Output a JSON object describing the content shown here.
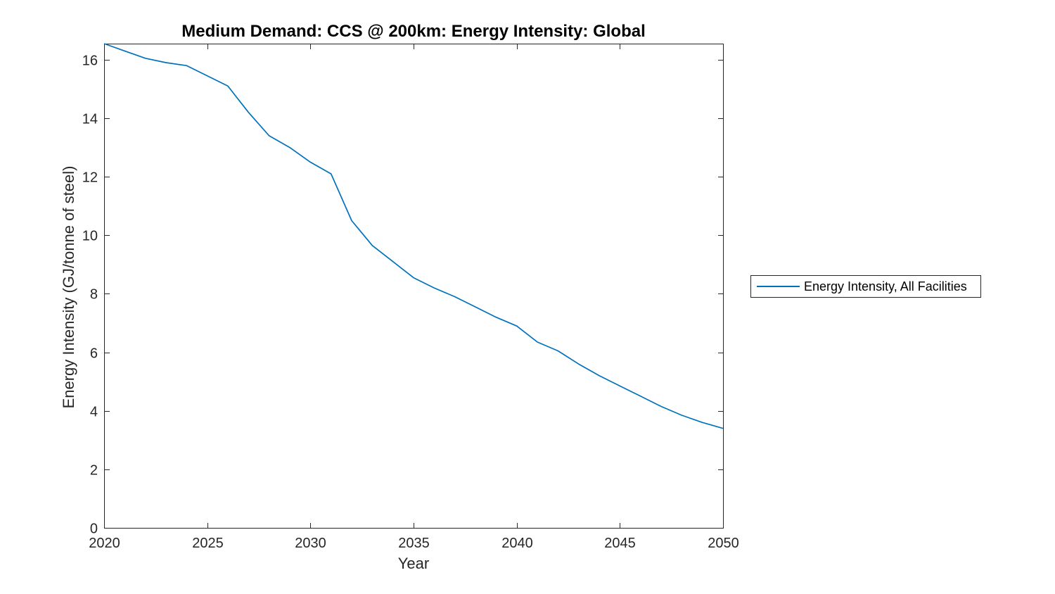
{
  "chart_data": {
    "type": "line",
    "title": "Medium Demand: CCS @ 200km: Energy Intensity: Global",
    "xlabel": "Year",
    "ylabel": "Energy Intensity (GJ/tonne of steel)",
    "x": [
      2020,
      2021,
      2022,
      2023,
      2024,
      2025,
      2026,
      2027,
      2028,
      2029,
      2030,
      2031,
      2032,
      2033,
      2034,
      2035,
      2036,
      2037,
      2038,
      2039,
      2040,
      2041,
      2042,
      2043,
      2044,
      2045,
      2046,
      2047,
      2048,
      2049,
      2050
    ],
    "series": [
      {
        "name": "Energy Intensity, All Facilities",
        "color": "#0072BD",
        "values": [
          16.55,
          16.3,
          16.05,
          15.9,
          15.8,
          15.45,
          15.1,
          14.2,
          13.4,
          13.0,
          12.5,
          12.1,
          10.5,
          9.65,
          9.1,
          8.55,
          8.2,
          7.9,
          7.55,
          7.2,
          6.9,
          6.35,
          6.05,
          5.6,
          5.2,
          4.85,
          4.5,
          4.15,
          3.85,
          3.6,
          3.4
        ]
      }
    ],
    "xlim": [
      2020,
      2050
    ],
    "ylim": [
      0,
      16.55
    ],
    "xticks": [
      2020,
      2025,
      2030,
      2035,
      2040,
      2045,
      2050
    ],
    "yticks": [
      0,
      2,
      4,
      6,
      8,
      10,
      12,
      14,
      16
    ],
    "grid": false,
    "box": true,
    "tick_direction": "in",
    "legend": {
      "position": "outside-right",
      "border": true
    },
    "axis_color": "#262626",
    "background": "#ffffff"
  }
}
